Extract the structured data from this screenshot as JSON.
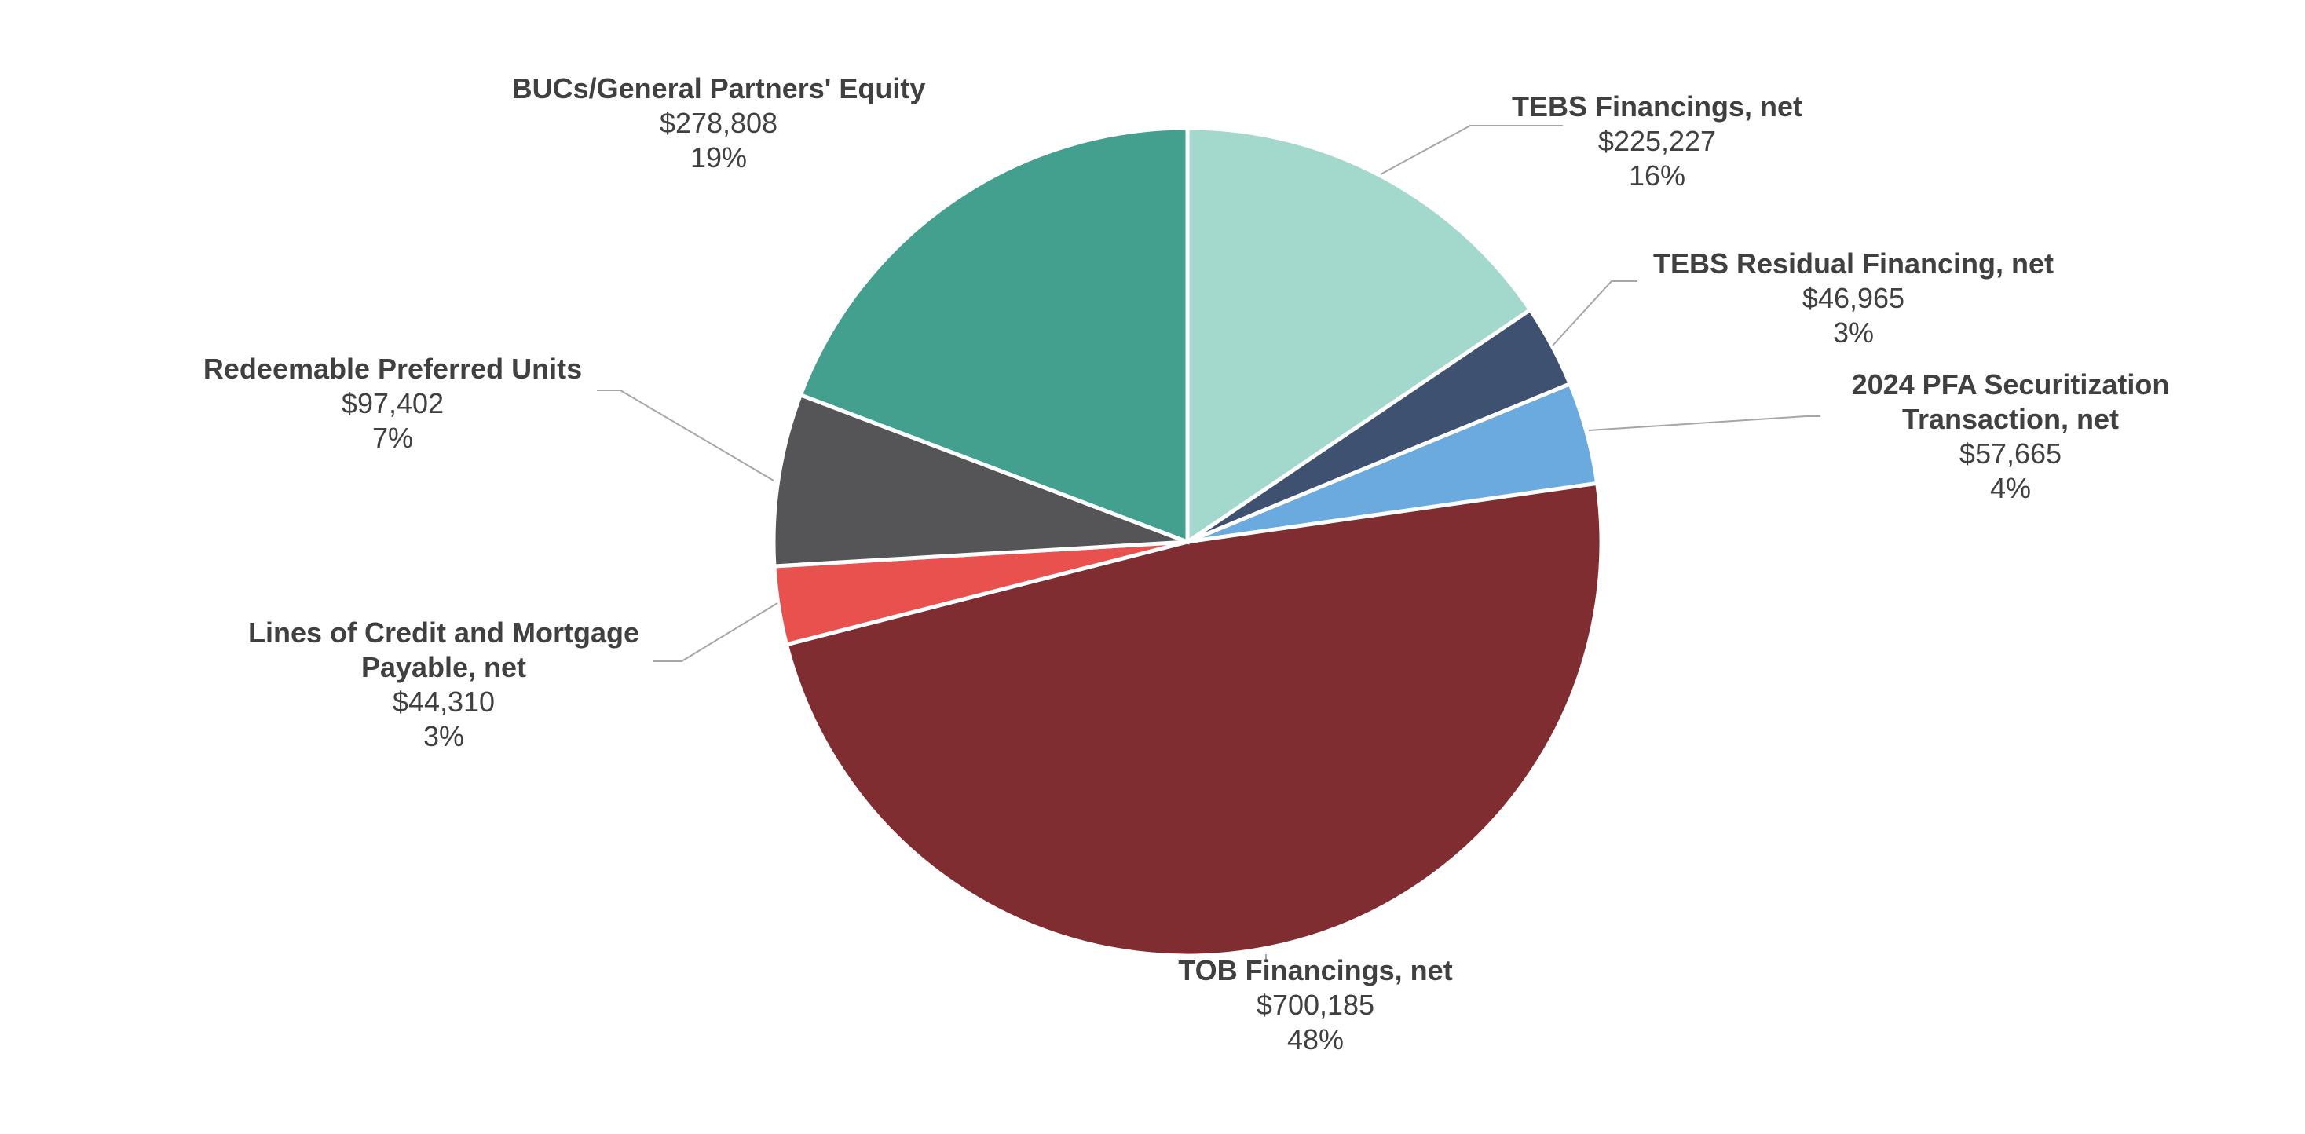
{
  "chart_data": {
    "type": "pie",
    "title": "",
    "slices": [
      {
        "name": "TEBS Financings, net",
        "value": 225227,
        "value_label": "$225,227",
        "percent_label": "16%",
        "color": "#a3d8cd"
      },
      {
        "name": "TEBS Residual Financing, net",
        "value": 46965,
        "value_label": "$46,965",
        "percent_label": "3%",
        "color": "#3f5171"
      },
      {
        "name": "2024 PFA Securitization Transaction, net",
        "value": 57665,
        "value_label": "$57,665",
        "percent_label": "4%",
        "color": "#6aaade"
      },
      {
        "name": "TOB Financings, net",
        "value": 700185,
        "value_label": "$700,185",
        "percent_label": "48%",
        "color": "#7f2d30"
      },
      {
        "name": "Lines of Credit and Mortgage Payable, net",
        "value": 44310,
        "value_label": "$44,310",
        "percent_label": "3%",
        "color": "#e8514e"
      },
      {
        "name": "Redeemable Preferred Units",
        "value": 97402,
        "value_label": "$97,402",
        "percent_label": "7%",
        "color": "#555557"
      },
      {
        "name": "BUCs/General Partners' Equity",
        "value": 278808,
        "value_label": "$278,808",
        "percent_label": "19%",
        "color": "#43a08e"
      }
    ],
    "start_angle": "12 o'clock",
    "direction": "clockwise",
    "legend": "none",
    "data_labels": "outside with leader lines"
  }
}
